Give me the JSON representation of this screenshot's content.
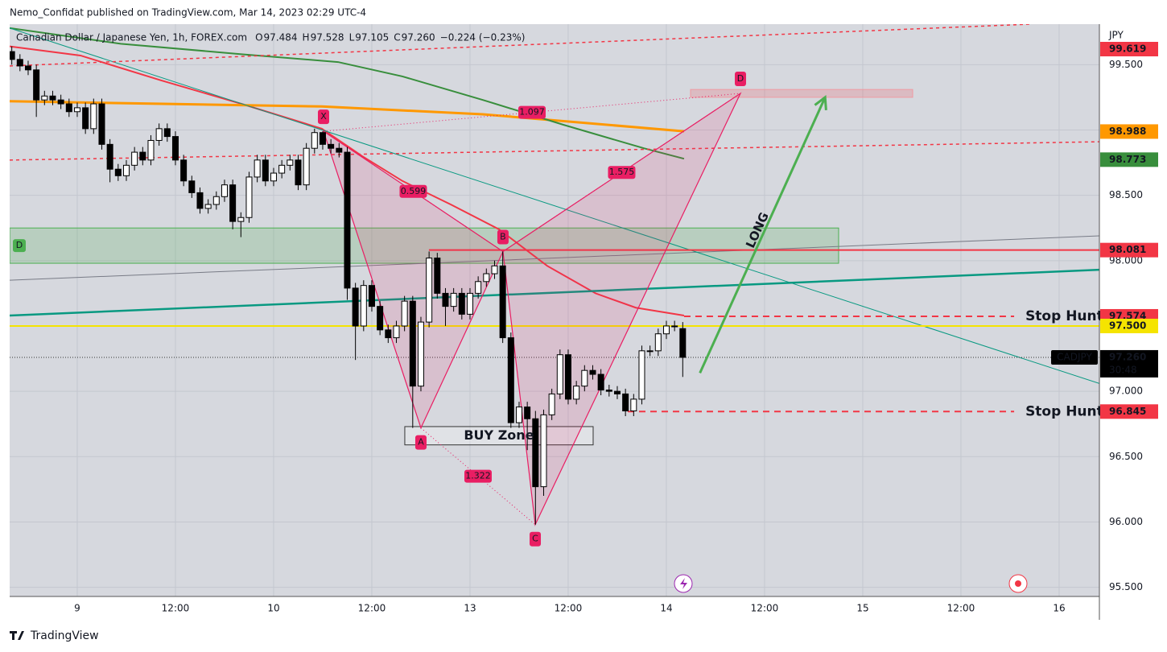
{
  "header": "Nemo_Confidat published on TradingView.com, Mar 14, 2023 02:29 UTC-4",
  "brand": "TradingView",
  "chart_data": {
    "type": "candlestick",
    "legend": {
      "name": "Canadian Dollar / Japanese Yen, 1h, FOREX.com",
      "items": [
        "O",
        "97.484",
        "H",
        "97.528",
        "L",
        "97.105",
        "C",
        "97.260",
        "−0.224 (−0.23%)"
      ]
    },
    "currency": "JPY",
    "xlim": [
      -8.26,
      124.92
    ],
    "xticks": [
      {
        "value": 0,
        "label": "9"
      },
      {
        "value": 12,
        "label": "12:00"
      },
      {
        "value": 24,
        "label": "10"
      },
      {
        "value": 36,
        "label": "12:00"
      },
      {
        "value": 48,
        "label": "13"
      },
      {
        "value": 60,
        "label": "12:00"
      },
      {
        "value": 72,
        "label": "14"
      },
      {
        "value": 84,
        "label": "12:00"
      },
      {
        "value": 96,
        "label": "15"
      },
      {
        "value": 108,
        "label": "12:00"
      },
      {
        "value": 120,
        "label": "16"
      }
    ],
    "ylim": [
      95.43,
      99.81
    ],
    "yticks": [
      {
        "value": 95.5,
        "label": "95.500"
      },
      {
        "value": 96,
        "label": "96.000"
      },
      {
        "value": 96.5,
        "label": "96.500"
      },
      {
        "value": 97,
        "label": "97.000"
      },
      {
        "value": 97.5,
        "label": "97.500"
      },
      {
        "value": 98,
        "label": "98.000"
      },
      {
        "value": 98.5,
        "label": "98.500"
      },
      {
        "value": 99,
        "label": "99.000"
      },
      {
        "value": 99.5,
        "label": "99.500"
      }
    ],
    "grid": true,
    "up_color": "#ffffff",
    "down_color": "#000000",
    "x": [
      -8,
      -7,
      -6,
      -5,
      -4,
      -3,
      -2,
      -1,
      0,
      1,
      2,
      3,
      4,
      5,
      6,
      7,
      8,
      9,
      10,
      11,
      12,
      13,
      14,
      15,
      16,
      17,
      18,
      19,
      20,
      21,
      22,
      23,
      24,
      25,
      26,
      27,
      28,
      29,
      30,
      31,
      32,
      33,
      34,
      35,
      36,
      37,
      38,
      39,
      40,
      41,
      42,
      43,
      44,
      45,
      46,
      47,
      48,
      49,
      50,
      51,
      52,
      53,
      54,
      55,
      56,
      57,
      58,
      59,
      60,
      61,
      62,
      63,
      64,
      65,
      66,
      67,
      68,
      69,
      70,
      71,
      72,
      73,
      74
    ],
    "open": [
      99.6,
      99.54,
      99.49,
      99.46,
      99.23,
      99.26,
      99.23,
      99.2,
      99.14,
      99.17,
      99.01,
      99.2,
      98.89,
      98.7,
      98.65,
      98.73,
      98.83,
      98.77,
      98.92,
      99.01,
      98.95,
      98.77,
      98.61,
      98.52,
      98.4,
      98.43,
      98.49,
      98.58,
      98.3,
      98.33,
      98.64,
      98.77,
      98.61,
      98.67,
      98.73,
      98.77,
      98.58,
      98.86,
      98.98,
      98.89,
      98.86,
      98.83,
      97.79,
      97.5,
      97.81,
      97.65,
      97.47,
      97.41,
      97.5,
      97.69,
      97.04,
      97.53,
      98.02,
      97.75,
      97.65,
      97.75,
      97.59,
      97.75,
      97.84,
      97.9,
      97.96,
      97.41,
      96.76,
      96.88,
      96.79,
      96.27,
      96.82,
      96.98,
      97.28,
      96.94,
      97.04,
      97.16,
      97.13,
      97.01,
      97.0,
      96.98,
      96.85,
      96.94,
      97.31,
      97.31,
      97.44,
      97.5,
      97.48
    ],
    "high": [
      99.64,
      99.58,
      99.53,
      99.5,
      99.3,
      99.3,
      99.27,
      99.24,
      99.21,
      99.21,
      99.24,
      99.24,
      98.93,
      98.74,
      98.77,
      98.87,
      98.87,
      98.96,
      99.05,
      99.05,
      98.99,
      98.81,
      98.65,
      98.56,
      98.47,
      98.53,
      98.62,
      98.62,
      98.37,
      98.68,
      98.81,
      98.81,
      98.71,
      98.77,
      98.81,
      98.81,
      98.9,
      99.01,
      98.99,
      98.93,
      98.9,
      98.87,
      97.83,
      97.85,
      97.85,
      97.69,
      97.51,
      97.54,
      97.73,
      97.73,
      97.57,
      98.07,
      98.06,
      97.79,
      97.79,
      97.79,
      97.79,
      97.88,
      97.94,
      98.0,
      98.07,
      97.45,
      96.92,
      96.92,
      96.85,
      96.86,
      97.02,
      97.32,
      97.32,
      97.08,
      97.2,
      97.2,
      97.17,
      97.05,
      97.04,
      97.02,
      96.98,
      97.35,
      97.35,
      97.48,
      97.54,
      97.54,
      97.53
    ],
    "low": [
      99.5,
      99.45,
      99.42,
      99.1,
      99.19,
      99.19,
      99.16,
      99.1,
      99.1,
      98.97,
      98.97,
      98.85,
      98.6,
      98.61,
      98.61,
      98.69,
      98.73,
      98.73,
      98.88,
      98.91,
      98.73,
      98.57,
      98.48,
      98.36,
      98.36,
      98.39,
      98.45,
      98.24,
      98.18,
      98.29,
      98.6,
      98.57,
      98.57,
      98.63,
      98.69,
      98.54,
      98.54,
      98.82,
      98.85,
      98.82,
      98.79,
      97.7,
      97.24,
      97.46,
      97.61,
      97.43,
      97.37,
      97.37,
      97.46,
      96.72,
      97.0,
      97.49,
      97.71,
      97.5,
      97.61,
      97.55,
      97.55,
      97.71,
      97.8,
      97.86,
      97.37,
      96.72,
      96.72,
      96.55,
      95.98,
      96.2,
      96.78,
      96.94,
      96.9,
      96.9,
      97.0,
      97.09,
      96.97,
      96.96,
      96.94,
      96.81,
      96.81,
      96.9,
      97.27,
      97.27,
      97.4,
      97.46,
      97.11
    ],
    "close": [
      99.54,
      99.49,
      99.46,
      99.23,
      99.26,
      99.23,
      99.2,
      99.14,
      99.17,
      99.01,
      99.2,
      98.89,
      98.7,
      98.65,
      98.73,
      98.83,
      98.77,
      98.92,
      99.01,
      98.95,
      98.77,
      98.61,
      98.52,
      98.4,
      98.43,
      98.49,
      98.58,
      98.3,
      98.33,
      98.64,
      98.77,
      98.61,
      98.67,
      98.73,
      98.77,
      98.58,
      98.86,
      98.98,
      98.89,
      98.86,
      98.83,
      97.79,
      97.5,
      97.81,
      97.65,
      97.47,
      97.41,
      97.5,
      97.69,
      97.04,
      97.53,
      98.02,
      97.75,
      97.65,
      97.75,
      97.59,
      97.75,
      97.84,
      97.9,
      97.96,
      97.41,
      96.76,
      96.88,
      96.79,
      96.27,
      96.82,
      96.98,
      97.28,
      96.94,
      97.04,
      97.16,
      97.13,
      97.01,
      97.0,
      96.98,
      96.85,
      96.94,
      97.31,
      97.31,
      97.44,
      97.5,
      97.5,
      97.26
    ],
    "lines": [
      {
        "color": "#f23645",
        "width": 2,
        "points": [
          [
            -8.26,
            99.64
          ],
          [
            0.39,
            99.57
          ],
          [
            10.23,
            99.38
          ],
          [
            20.07,
            99.2
          ],
          [
            29.9,
            99.01
          ],
          [
            34.82,
            98.8
          ],
          [
            39.74,
            98.61
          ],
          [
            45.64,
            98.43
          ],
          [
            51.54,
            98.24
          ],
          [
            57.44,
            97.96
          ],
          [
            63.34,
            97.75
          ],
          [
            68.26,
            97.64
          ],
          [
            74.16,
            97.58
          ]
        ]
      },
      {
        "color": "#ff9800",
        "width": 3,
        "points": [
          [
            -8.26,
            99.22
          ],
          [
            29.9,
            99.18
          ],
          [
            49.57,
            99.12
          ],
          [
            74.16,
            98.99
          ]
        ]
      },
      {
        "color": "#388e3c",
        "width": 2,
        "points": [
          [
            -8.26,
            99.78
          ],
          [
            5.31,
            99.66
          ],
          [
            20.07,
            99.58
          ],
          [
            31.87,
            99.52
          ],
          [
            39.74,
            99.41
          ],
          [
            49.57,
            99.23
          ],
          [
            59.41,
            99.04
          ],
          [
            69.25,
            98.86
          ],
          [
            74.16,
            98.78
          ]
        ]
      },
      {
        "color": "#089981",
        "width": 2.5,
        "points": [
          [
            -8.26,
            97.58
          ],
          [
            124.92,
            97.93
          ]
        ]
      },
      {
        "color": "#787b86",
        "width": 1,
        "points": [
          [
            -8.26,
            97.85
          ],
          [
            124.92,
            98.19
          ]
        ]
      },
      {
        "color": "#089981",
        "width": 1,
        "points": [
          [
            -8.26,
            99.78
          ],
          [
            124.92,
            97.06
          ]
        ]
      },
      {
        "color": "#f23645",
        "width": 1.5,
        "dash": "4 4",
        "points": [
          [
            -8.26,
            99.49
          ],
          [
            116.46,
            99.81
          ]
        ]
      },
      {
        "color": "#f23645",
        "width": 1.5,
        "dash": "4 4",
        "points": [
          [
            -8.26,
            98.77
          ],
          [
            124.92,
            98.91
          ]
        ]
      }
    ],
    "zones": [
      {
        "x": [
          -8.26,
          93.05
        ],
        "y": [
          97.98,
          98.25
        ],
        "color": "rgba(76,175,80,0.22)",
        "border": "#4caf50",
        "text": "D"
      },
      {
        "x": [
          74.95,
          102.1
        ],
        "y": [
          99.25,
          99.31
        ],
        "color": "rgba(242,54,69,0.18)",
        "border": "#f09aa2"
      },
      {
        "x": [
          40.03,
          63.05
        ],
        "y": [
          96.59,
          96.73
        ],
        "color": "rgba(255,255,255,0.25)",
        "border": "#333333",
        "text": "BUY Zone"
      }
    ],
    "pattern": {
      "color": "#e91e63",
      "points": [
        {
          "label": "X",
          "x": 30.1,
          "y": 98.99
        },
        {
          "label": "A",
          "x": 42.0,
          "y": 96.72
        },
        {
          "label": "B",
          "x": 52.03,
          "y": 98.07
        },
        {
          "label": "C",
          "x": 55.97,
          "y": 95.98
        },
        {
          "label": "D",
          "x": 81.05,
          "y": 99.28
        }
      ],
      "ratios": [
        "1.097",
        "0.599",
        "1.575",
        "1.322"
      ]
    },
    "arrow": {
      "text": "LONG",
      "color": "#4caf50",
      "points": [
        [
          76.1,
          97.14
        ],
        [
          91.4,
          99.25
        ]
      ]
    },
    "levels": [
      {
        "value": 98.081,
        "from": 42.98,
        "color": "#f23645"
      },
      {
        "value": 97.574,
        "from": 74.16,
        "to": 114.5,
        "color": "#f23645",
        "dash": "8 6",
        "text": "Stop Hunt"
      },
      {
        "value": 96.845,
        "from": 67.28,
        "to": 114.5,
        "color": "#f23645",
        "dash": "8 6",
        "text": "Stop Hunt"
      },
      {
        "value": 97.5,
        "label": "97.500",
        "color": "#f5e400"
      }
    ],
    "axis_labels": [
      {
        "value": 99.619,
        "color": "#f23645"
      },
      {
        "value": 98.988,
        "color": "#ff9800"
      },
      {
        "value": 98.773,
        "color": "#388e3c"
      }
    ],
    "last_price": {
      "value": 97.26,
      "label": "97.260",
      "symbol": "CADJPY",
      "countdown": "30:48"
    }
  }
}
